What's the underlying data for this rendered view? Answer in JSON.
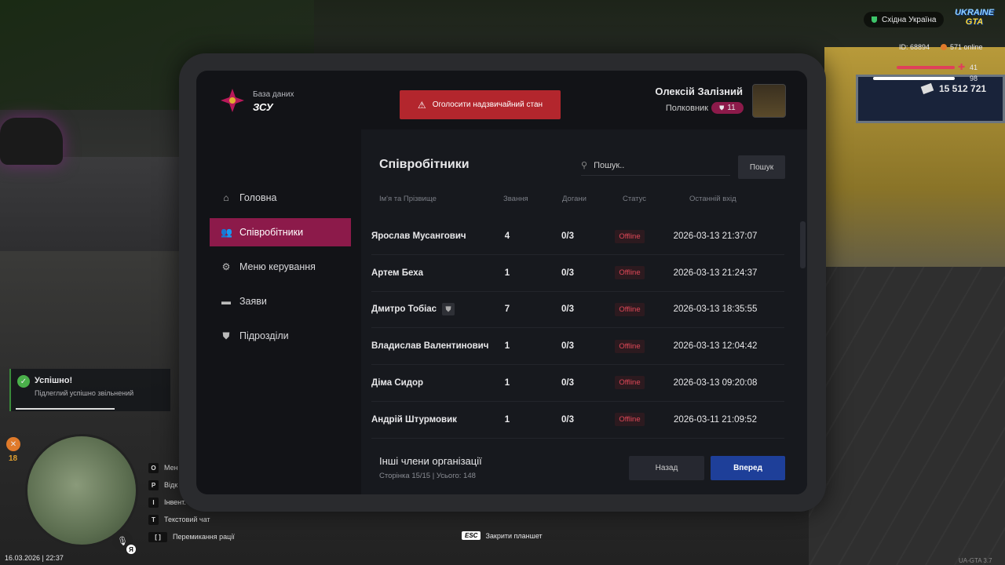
{
  "hud": {
    "region": "Східна Україна",
    "logo_top": "UKRAINE",
    "logo_bottom": "GTA",
    "player_id": "ID: 68894",
    "online": "571 online",
    "health": "41",
    "armor": "98",
    "money": "15 512 721",
    "hunger": "18",
    "datetime": "16.03.2026 | 22:37",
    "mic_key": "Я",
    "version": "UA-GTA 3.7"
  },
  "hints": [
    {
      "key": "O",
      "label": "Мен"
    },
    {
      "key": "P",
      "label": "Відк"
    },
    {
      "key": "I",
      "label": "Інвент."
    },
    {
      "key": "T",
      "label": "Текстовий чат"
    },
    {
      "key": "[ ]",
      "label": "Перемикання рації"
    }
  ],
  "esc": {
    "key": "ESC",
    "label": "Закрити планшет"
  },
  "notification": {
    "title": "Успішно!",
    "text": "Підлеглий успішно звільнений"
  },
  "tablet": {
    "brand": {
      "caption": "База даних",
      "name": "ЗСУ"
    },
    "alert_button": "Оголосити надзвичайний стан",
    "user": {
      "name": "Олексій Залізний",
      "rank": "Полковник",
      "level": "11"
    },
    "nav": [
      {
        "label": "Головна",
        "active": false
      },
      {
        "label": "Співробітники",
        "active": true
      },
      {
        "label": "Меню керування",
        "active": false
      },
      {
        "label": "Заяви",
        "active": false
      },
      {
        "label": "Підрозділи",
        "active": false
      }
    ],
    "section_title": "Співробітники",
    "search": {
      "placeholder": "Пошук..",
      "button": "Пошук"
    },
    "columns": [
      "Ім'я та Прізвище",
      "Звання",
      "Догани",
      "Статус",
      "Останній вхід"
    ],
    "rows": [
      {
        "name": "Ярослав Мусангович",
        "rank": "4",
        "reprimands": "0/3",
        "status": "Offline",
        "last_login": "2026-03-13 21:37:07"
      },
      {
        "name": "Артем Беха",
        "rank": "1",
        "reprimands": "0/3",
        "status": "Offline",
        "last_login": "2026-03-13 21:24:37"
      },
      {
        "name": "Дмитро Тобіас",
        "rank": "7",
        "reprimands": "0/3",
        "status": "Offline",
        "last_login": "2026-03-13 18:35:55",
        "shield": true
      },
      {
        "name": "Владислав Валентинович",
        "rank": "1",
        "reprimands": "0/3",
        "status": "Offline",
        "last_login": "2026-03-13 12:04:42"
      },
      {
        "name": "Діма Сидор",
        "rank": "1",
        "reprimands": "0/3",
        "status": "Offline",
        "last_login": "2026-03-13 09:20:08"
      },
      {
        "name": "Андрій Штурмовик",
        "rank": "1",
        "reprimands": "0/3",
        "status": "Offline",
        "last_login": "2026-03-11 21:09:52"
      }
    ],
    "footer": {
      "title": "Інші члени організації",
      "pagination": "Сторінка 15/15 | Усього: 148",
      "prev": "Назад",
      "next": "Вперед"
    }
  }
}
